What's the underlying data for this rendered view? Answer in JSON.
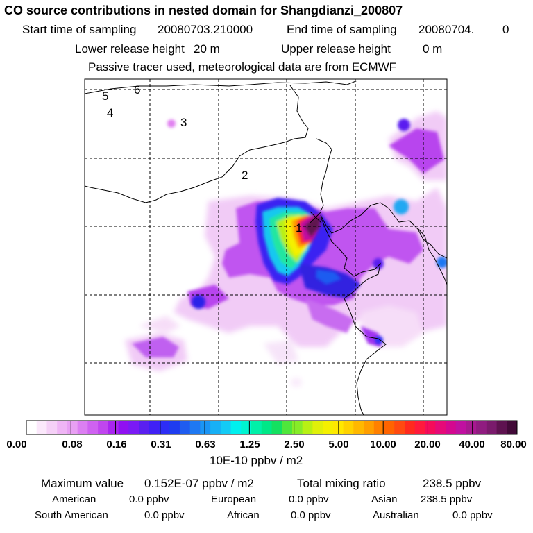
{
  "header": {
    "title": "CO  source contributions in nested domain for Shangdianzi_200807",
    "start_label": "Start time of sampling",
    "start_value": "20080703.210000",
    "end_label": "End time of sampling",
    "end_value": "20080704.",
    "end_suffix": "0",
    "lower_label": "Lower release height",
    "lower_value": "20 m",
    "upper_label": "Upper release height",
    "upper_value": "0 m",
    "note": "Passive tracer used, meteorological data are from ECMWF"
  },
  "map": {
    "point_labels": [
      "1",
      "2",
      "3",
      "4",
      "5",
      "6"
    ],
    "site_marker": "x-mark"
  },
  "colorbar": {
    "ticks": [
      "0.00",
      "0.08",
      "0.16",
      "0.31",
      "0.63",
      "1.25",
      "2.50",
      "5.00",
      "10.00",
      "20.00",
      "40.00",
      "80.00"
    ],
    "colors": [
      "#ffffff",
      "#fbe8fb",
      "#f5d0f7",
      "#efb5f5",
      "#e8a0f3",
      "#dc7ff2",
      "#cf62f1",
      "#c046ef",
      "#a925f0",
      "#9010f2",
      "#7a1af5",
      "#5a1ff0",
      "#4020f5",
      "#2d2df5",
      "#1e3cf0",
      "#1f5cf0",
      "#1e78f2",
      "#1a95f5",
      "#17b0f5",
      "#14cbf5",
      "#00f0ee",
      "#00f5d0",
      "#00f0a8",
      "#00e887",
      "#14e060",
      "#4fe63c",
      "#86ec28",
      "#b8f014",
      "#e0f00a",
      "#f5f000",
      "#ffe800",
      "#ffd200",
      "#ffb800",
      "#ff9e00",
      "#ff8000",
      "#ff6400",
      "#ff4a10",
      "#ff2a1e",
      "#ff1a3c",
      "#f50c5a",
      "#e60a78",
      "#d4088f",
      "#c010a0",
      "#a81890",
      "#901c80",
      "#7a1a6c",
      "#5e1250",
      "#420a38"
    ],
    "unit": "10E-10 ppbv / m2"
  },
  "summary": {
    "max_label": "Maximum value",
    "max_value": "0.152E-07 ppbv / m2",
    "total_label": "Total mixing ratio",
    "total_value": "238.5 ppbv",
    "regions": [
      {
        "name": "American",
        "value": "0.0 ppbv"
      },
      {
        "name": "European",
        "value": "0.0 ppbv"
      },
      {
        "name": "Asian",
        "value": "238.5 ppbv"
      },
      {
        "name": "South American",
        "value": "0.0 ppbv"
      },
      {
        "name": "African",
        "value": "0.0 ppbv"
      },
      {
        "name": "Australian",
        "value": "0.0 ppbv"
      }
    ]
  }
}
